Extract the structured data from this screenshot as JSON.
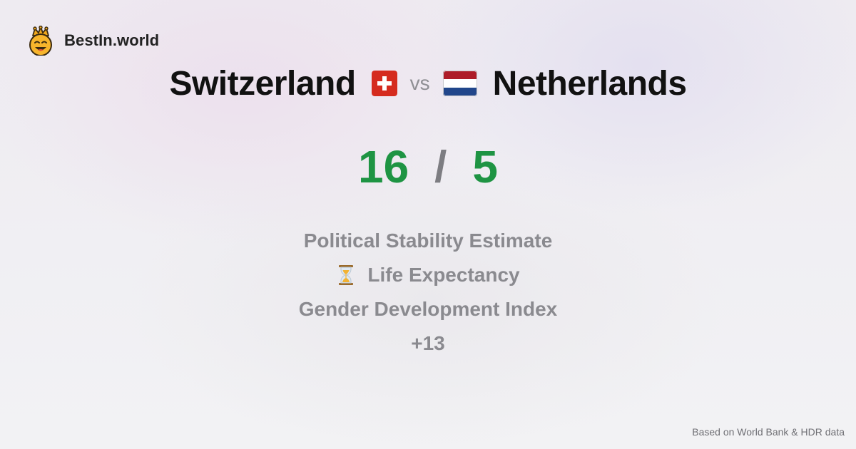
{
  "brand": {
    "name": "BestIn.world",
    "logo_icon": "crowned-smiley-icon"
  },
  "comparison": {
    "left_country": "Switzerland",
    "left_flag_icon": "switzerland-flag-icon",
    "vs_label": "vs",
    "right_country": "Netherlands",
    "right_flag_icon": "netherlands-flag-icon"
  },
  "score": {
    "left": "16",
    "separator": "/",
    "right": "5",
    "color": "#1e9443"
  },
  "metrics": [
    {
      "label": "Political Stability Estimate"
    },
    {
      "label": "Life Expectancy",
      "icon": "hourglass-icon"
    },
    {
      "label": "Gender Development Index"
    },
    {
      "label": "+13"
    }
  ],
  "footer": {
    "source": "Based on World Bank & HDR data"
  }
}
